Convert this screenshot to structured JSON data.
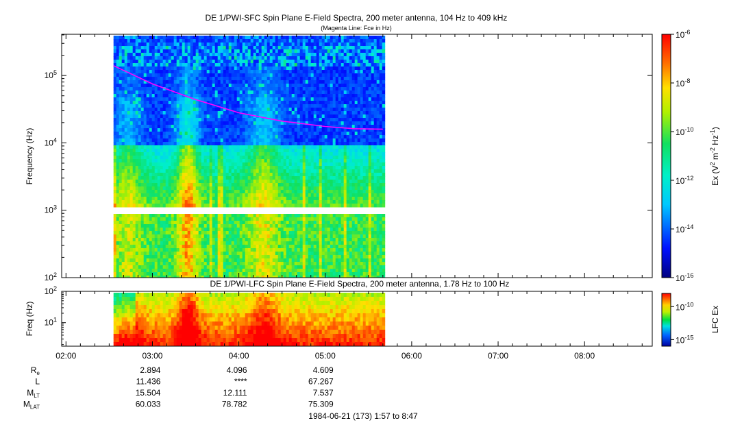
{
  "chart_data": [
    {
      "type": "heatmap",
      "title": "DE 1/PWI-SFC  Spin Plane E-Field Spectra, 200 meter antenna, 104 Hz to 409 kHz",
      "subtitle": "(Magenta Line: Fce in Hz)",
      "ylabel": "Frequency (Hz)",
      "y_scale": "log",
      "ylim": [
        100,
        409000
      ],
      "y_ticks": [
        "10^2",
        "10^3",
        "10^4",
        "10^5"
      ],
      "data_time_range": [
        "02:33",
        "05:41"
      ],
      "colorbar": {
        "label": "Ex (V^2 m^-2 Hz^-1)",
        "scale": "log",
        "range": [
          1e-16,
          1e-06
        ],
        "ticks": [
          "10^-6",
          "10^-8",
          "10^-10",
          "10^-12",
          "10^-14",
          "10^-16"
        ]
      },
      "series": [
        {
          "name": "Fce",
          "color": "#ff00ff",
          "x": [
            "02:33",
            "03:00",
            "03:30",
            "04:00",
            "04:30",
            "05:00",
            "05:20",
            "05:40"
          ],
          "y": [
            140000,
            75000,
            44000,
            28000,
            21000,
            17500,
            16200,
            16000
          ]
        }
      ]
    },
    {
      "type": "heatmap",
      "title": "DE 1/PWI-LFC  Spin Plane E-Field Spectra, 200 meter antenna, 1.78 Hz to 100 Hz",
      "ylabel": "Freq (Hz)",
      "y_scale": "log",
      "ylim": [
        1.78,
        100
      ],
      "y_ticks": [
        "10^1",
        "10^2"
      ],
      "data_time_range": [
        "02:33",
        "05:41"
      ],
      "colorbar": {
        "label": "LFC Ex",
        "scale": "log",
        "range": [
          1e-16,
          1e-08
        ],
        "ticks": [
          "10^-10",
          "10^-15"
        ]
      }
    }
  ],
  "x_axis": {
    "ticks": [
      "02:00",
      "03:00",
      "04:00",
      "05:00",
      "06:00",
      "07:00",
      "08:00"
    ]
  },
  "ephemeris": {
    "rows": [
      {
        "label": "R",
        "sub": "e",
        "values": [
          "2.894",
          "4.096",
          "4.609"
        ]
      },
      {
        "label": "L",
        "sub": "",
        "values": [
          "11.436",
          "****",
          "67.267"
        ]
      },
      {
        "label": "M",
        "sub": "LT",
        "values": [
          "15.504",
          "12.111",
          "7.537"
        ]
      },
      {
        "label": "M",
        "sub": "LAT",
        "values": [
          "60.033",
          "78.782",
          "75.309"
        ]
      }
    ]
  },
  "footer": "1984-06-21 (173) 1:57 to 8:47",
  "colors": {
    "fce_line": "#ff00ff",
    "frame": "#000000",
    "background": "#ffffff"
  }
}
